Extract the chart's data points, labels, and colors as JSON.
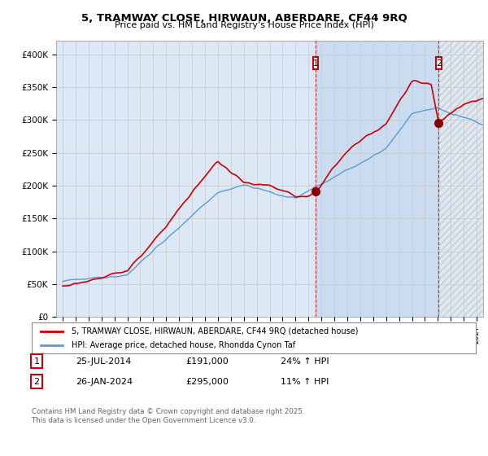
{
  "title": "5, TRAMWAY CLOSE, HIRWAUN, ABERDARE, CF44 9RQ",
  "subtitle": "Price paid vs. HM Land Registry's House Price Index (HPI)",
  "legend_line1": "5, TRAMWAY CLOSE, HIRWAUN, ABERDARE, CF44 9RQ (detached house)",
  "legend_line2": "HPI: Average price, detached house, Rhondda Cynon Taf",
  "annotation1_date": "25-JUL-2014",
  "annotation1_price": "£191,000",
  "annotation1_hpi": "24% ↑ HPI",
  "annotation2_date": "26-JAN-2024",
  "annotation2_price": "£295,000",
  "annotation2_hpi": "11% ↑ HPI",
  "footer": "Contains HM Land Registry data © Crown copyright and database right 2025.\nThis data is licensed under the Open Government Licence v3.0.",
  "red_color": "#cc0000",
  "blue_color": "#5b9bd5",
  "grid_color": "#cccccc",
  "background_color": "#ffffff",
  "plot_bg_color": "#dce8f5",
  "shade_color": "#c5d8ef",
  "hatch_color": "#cccccc",
  "ylim": [
    0,
    420000
  ],
  "yticks": [
    0,
    50000,
    100000,
    150000,
    200000,
    250000,
    300000,
    350000,
    400000
  ],
  "ytick_labels": [
    "£0",
    "£50K",
    "£100K",
    "£150K",
    "£200K",
    "£250K",
    "£300K",
    "£350K",
    "£400K"
  ],
  "xlim_start": 1994.5,
  "xlim_end": 2027.5,
  "marker1_x": 2014.56,
  "marker1_y": 191000,
  "marker2_x": 2024.07,
  "marker2_y": 295000,
  "shade_start": 2014.56,
  "shade_end": 2024.07,
  "hatch_start": 2024.07,
  "hatch_end": 2027.5
}
